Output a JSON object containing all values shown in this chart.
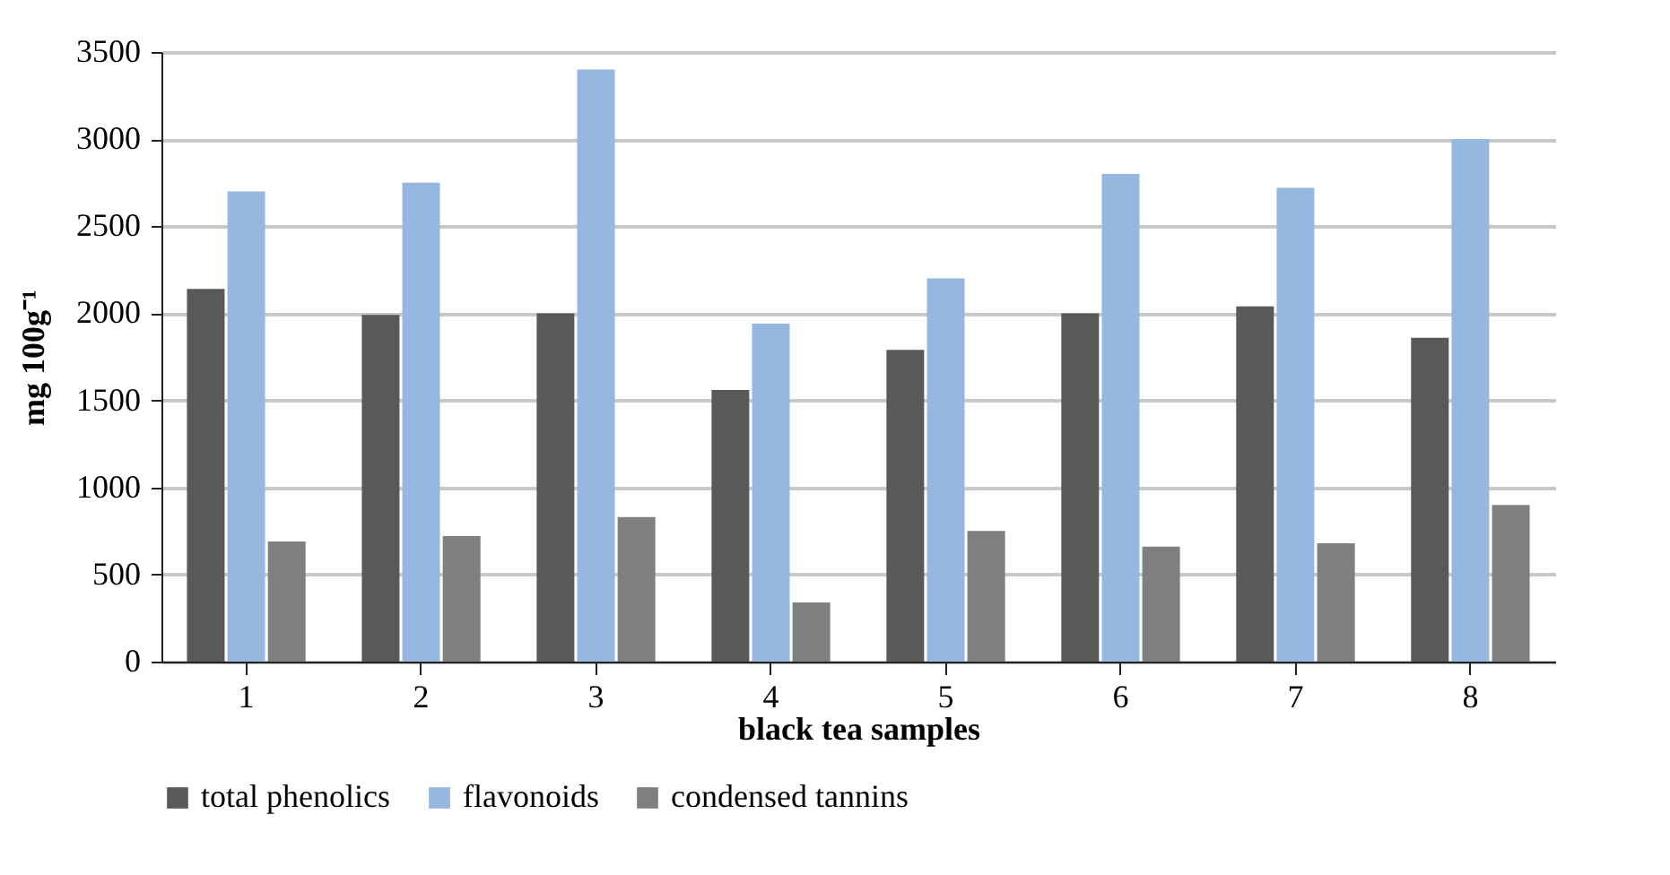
{
  "chart_data": {
    "type": "bar",
    "xlabel": "black tea samples",
    "ylabel": "mg 100g⁻¹",
    "categories": [
      "1",
      "2",
      "3",
      "4",
      "5",
      "6",
      "7",
      "8"
    ],
    "series": [
      {
        "name": "total phenolics",
        "color": "#595959",
        "values": [
          2140,
          1990,
          2000,
          1560,
          1790,
          2000,
          2040,
          1860
        ]
      },
      {
        "name": "flavonoids",
        "color": "#95b7e0",
        "values": [
          2700,
          2750,
          3400,
          1940,
          2200,
          2800,
          2720,
          3000
        ]
      },
      {
        "name": "condensed tannins",
        "color": "#7f7f7f",
        "values": [
          690,
          720,
          830,
          340,
          750,
          660,
          680,
          900
        ]
      }
    ],
    "ylim": [
      0,
      3500
    ],
    "yticks": [
      0,
      500,
      1000,
      1500,
      2000,
      2500,
      3000,
      3500
    ],
    "grid": "y",
    "legend": "bottom"
  }
}
